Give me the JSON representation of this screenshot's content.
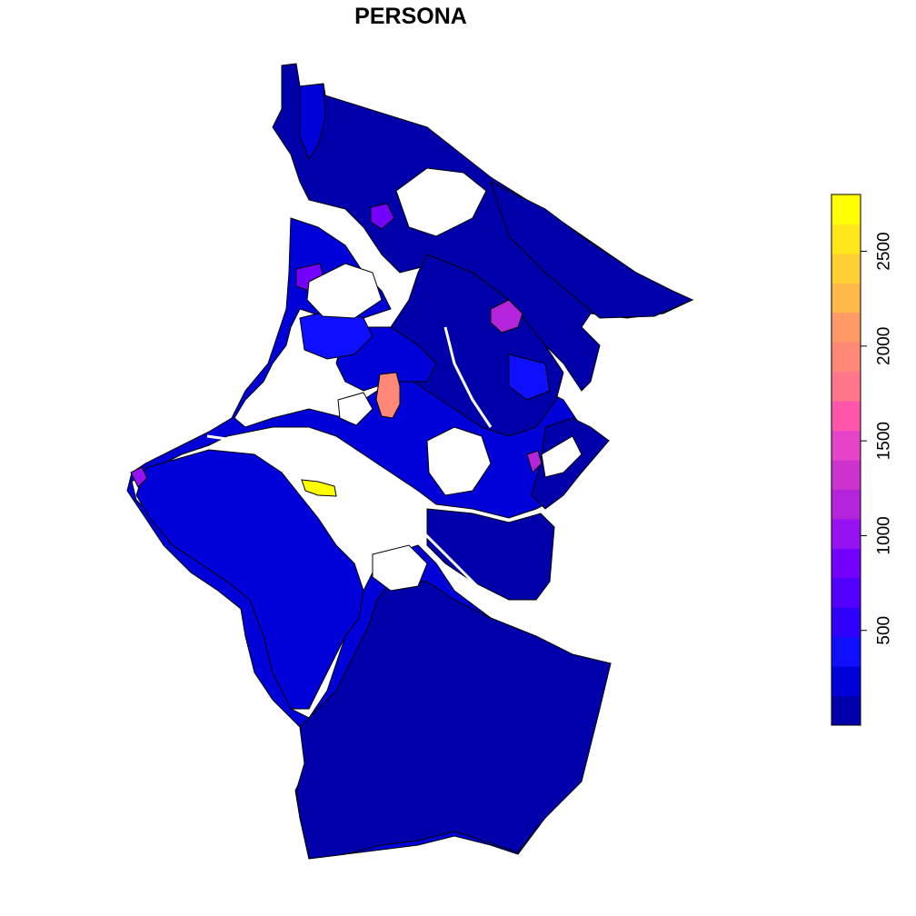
{
  "title": "PERSONA",
  "legend": {
    "min": 0,
    "max": 2800,
    "ticks": [
      {
        "value": 500,
        "label": "500"
      },
      {
        "value": 1000,
        "label": "1000"
      },
      {
        "value": 1500,
        "label": "1500"
      },
      {
        "value": 2000,
        "label": "2000"
      },
      {
        "value": 2500,
        "label": "2500"
      }
    ],
    "colors": [
      "#0000AA",
      "#0000D8",
      "#0F0FFF",
      "#3000FF",
      "#5200FF",
      "#7400FF",
      "#9612F2",
      "#B324DB",
      "#CC33CC",
      "#E644C8",
      "#FF55AA",
      "#FF7788",
      "#FF8877",
      "#FF9966",
      "#FFB84A",
      "#FFD033",
      "#FFE81A",
      "#FFFF00"
    ]
  },
  "map": {
    "base_color": "#0000AA",
    "mid_color": "#0000D8",
    "light_color": "#0F0FFF",
    "highlights": [
      {
        "name": "pink-zone",
        "value": 2000,
        "color": "#FF8877"
      },
      {
        "name": "yellow-zone",
        "value": 2800,
        "color": "#FFFF00"
      },
      {
        "name": "purple-zone-west",
        "value": 1100,
        "color": "#9612F2"
      },
      {
        "name": "purple-zone-north",
        "value": 1000,
        "color": "#7400FF"
      },
      {
        "name": "purple-zone-east",
        "value": 1150,
        "color": "#B324DB"
      }
    ]
  }
}
